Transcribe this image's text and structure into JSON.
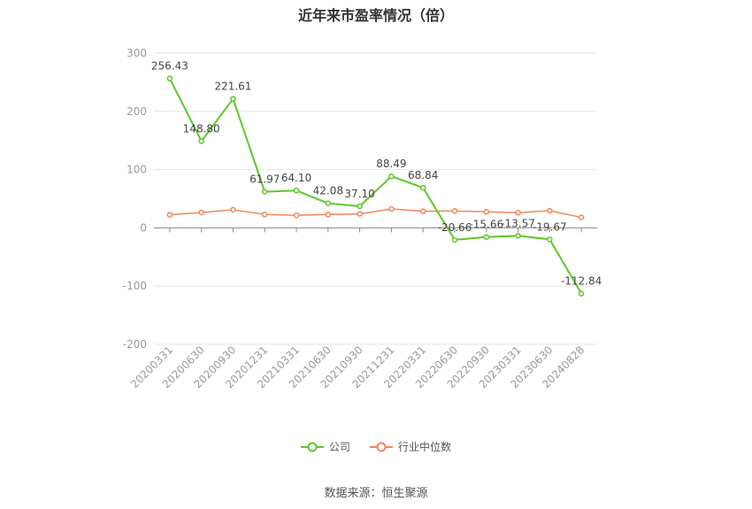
{
  "chart_data": {
    "type": "line",
    "title": "近年来市盈率情况（倍）",
    "categories": [
      "20200331",
      "20200630",
      "20200930",
      "20201231",
      "20210331",
      "20210630",
      "20210930",
      "20211231",
      "20220331",
      "20220630",
      "20220930",
      "20230331",
      "20230630",
      "20240828"
    ],
    "ylim": [
      -200,
      300
    ],
    "yticks": [
      300,
      200,
      100,
      0,
      -100,
      -200
    ],
    "grid": true,
    "legend_position": "bottom",
    "series": [
      {
        "name": "公司",
        "color": "#5cc72a",
        "values": [
          256.43,
          148.8,
          221.61,
          61.97,
          64.1,
          42.08,
          37.1,
          88.49,
          68.84,
          -20.66,
          -15.66,
          -13.57,
          -19.67,
          -112.84
        ],
        "labels": [
          "256.43",
          "148.80",
          "221.61",
          "61.97",
          "64.10",
          "42.08",
          "37.10",
          "88.49",
          "68.84",
          "-20.66",
          "-15.66",
          "-13.57",
          "-19.67",
          "-112.84"
        ]
      },
      {
        "name": "行业中位数",
        "color": "#f0875a",
        "values": [
          22.5,
          26.5,
          31,
          23,
          21.5,
          23,
          24,
          32.5,
          28.5,
          29,
          27.5,
          26,
          29.5,
          18
        ]
      }
    ]
  },
  "source_text": "数据来源：恒生聚源"
}
